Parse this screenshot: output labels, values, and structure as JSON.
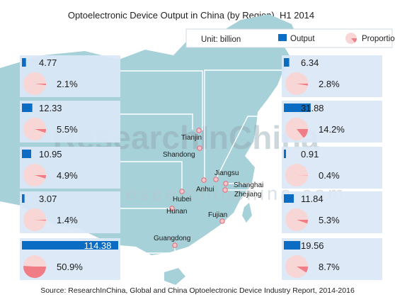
{
  "title": "Optoelectronic Device Output in China (by Region), H1 2014",
  "unit_label": "Unit: billion",
  "legend": {
    "output": "Output",
    "proportion": "Proportion"
  },
  "source": "Source: ResearchInChina, Global and China Optoelectronic Device Industry Report, 2014-2016",
  "watermark": {
    "brand": "ResearchInChina",
    "url": "www.researchinchina.com"
  },
  "colors": {
    "bar": "#0a6cc2",
    "pie_bg": "#f8d6d6",
    "pie_slice": "#f07c86",
    "panel": "#dae7f6",
    "map": "#a7d1d8"
  },
  "chart_data": {
    "type": "bar",
    "title": "Optoelectronic Device Output in China (by Region), H1 2014",
    "unit": "billion",
    "categories": [
      "Tianjin",
      "Shandong",
      "Hubei",
      "Hunan",
      "Guangdong",
      "Anhui",
      "Jiangsu",
      "Shanghai",
      "Zhejiang",
      "Fujian"
    ],
    "series": [
      {
        "name": "Output",
        "values": [
          4.77,
          12.33,
          10.95,
          3.07,
          114.38,
          6.34,
          31.88,
          0.91,
          11.84,
          19.56
        ]
      },
      {
        "name": "Proportion",
        "values": [
          "2.1%",
          "5.5%",
          "4.9%",
          "1.4%",
          "50.9%",
          "2.8%",
          "14.2%",
          "0.4%",
          "5.3%",
          "8.7%"
        ]
      }
    ],
    "proportion_values": [
      2.1,
      5.5,
      4.9,
      1.4,
      50.9,
      2.8,
      14.2,
      0.4,
      5.3,
      8.7
    ],
    "bar_max": 114.38,
    "legend_position": "top-right"
  }
}
